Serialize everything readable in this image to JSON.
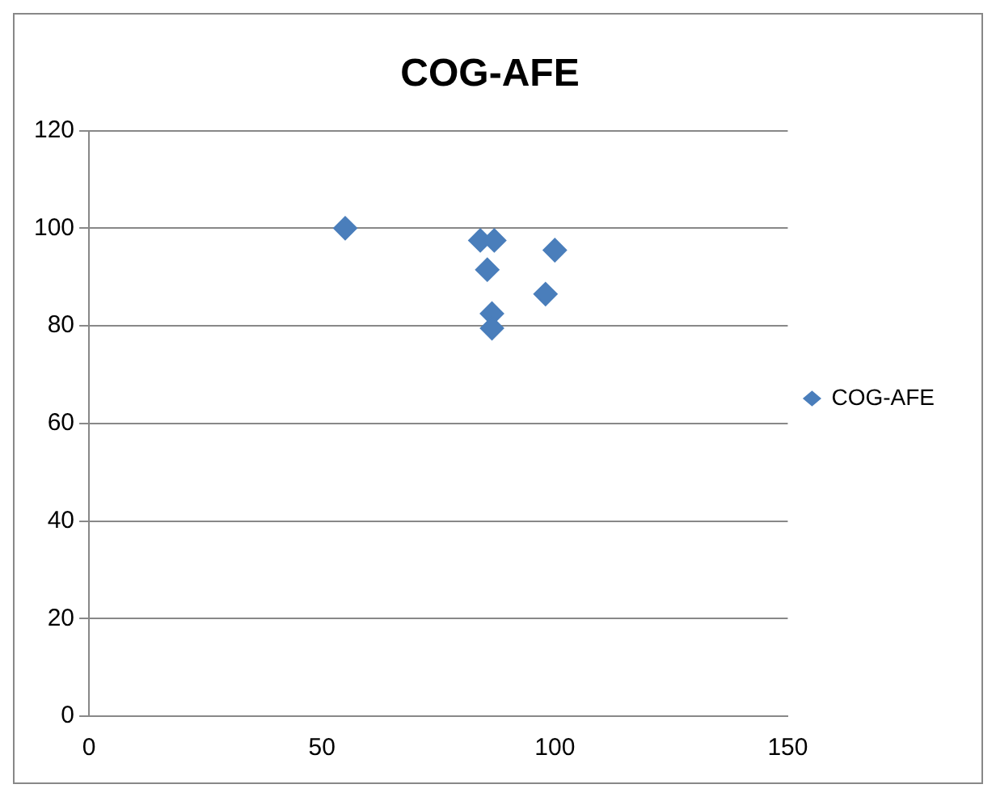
{
  "chart_data": {
    "type": "scatter",
    "title": "COG-AFE",
    "series": [
      {
        "name": "COG-AFE",
        "color": "#4a7ebb",
        "x": [
          55,
          84,
          87,
          100,
          85.5,
          98,
          86.5,
          86.5
        ],
        "values": [
          100,
          97.5,
          97.5,
          95.5,
          91.5,
          86.5,
          82.5,
          79.5
        ]
      }
    ],
    "xlim": [
      0,
      150
    ],
    "xticks": [
      0,
      50,
      100,
      150
    ],
    "ylim": [
      0,
      120
    ],
    "yticks": [
      0,
      20,
      40,
      60,
      80,
      100,
      120
    ],
    "grid": "y",
    "legend": "right",
    "marker": "diamond"
  }
}
